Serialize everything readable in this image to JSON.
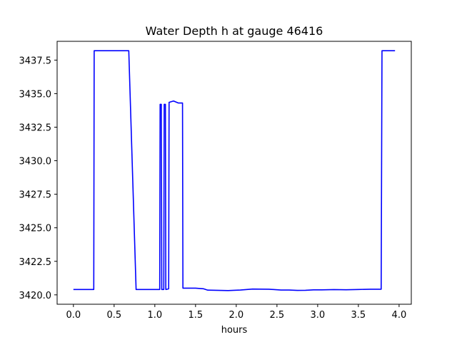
{
  "chart_data": {
    "type": "line",
    "title": "Water Depth h at gauge 46416",
    "xlabel": "hours",
    "ylabel": "",
    "xlim": [
      -0.2,
      4.15
    ],
    "ylim": [
      3419.3,
      3438.9
    ],
    "xticks": [
      0.0,
      0.5,
      1.0,
      1.5,
      2.0,
      2.5,
      3.0,
      3.5,
      4.0
    ],
    "xtick_labels": [
      "0.0",
      "0.5",
      "1.0",
      "1.5",
      "2.0",
      "2.5",
      "3.0",
      "3.5",
      "4.0"
    ],
    "yticks": [
      3420.0,
      3422.5,
      3425.0,
      3427.5,
      3430.0,
      3432.5,
      3435.0,
      3437.5
    ],
    "ytick_labels": [
      "3420.0",
      "3422.5",
      "3425.0",
      "3427.5",
      "3430.0",
      "3432.5",
      "3435.0",
      "3437.5"
    ],
    "grid": false,
    "series": [
      {
        "color": "#0000ff",
        "points": [
          [
            0.0,
            3420.4
          ],
          [
            0.25,
            3420.4
          ],
          [
            0.255,
            3438.2
          ],
          [
            0.5,
            3438.2
          ],
          [
            0.68,
            3438.2
          ],
          [
            0.77,
            3420.4
          ],
          [
            1.06,
            3420.4
          ],
          [
            1.065,
            3434.2
          ],
          [
            1.08,
            3434.2
          ],
          [
            1.085,
            3420.4
          ],
          [
            1.11,
            3420.4
          ],
          [
            1.115,
            3434.2
          ],
          [
            1.13,
            3434.2
          ],
          [
            1.135,
            3420.4
          ],
          [
            1.17,
            3420.45
          ],
          [
            1.175,
            3434.35
          ],
          [
            1.23,
            3434.45
          ],
          [
            1.29,
            3434.3
          ],
          [
            1.34,
            3434.3
          ],
          [
            1.345,
            3420.5
          ],
          [
            1.5,
            3420.5
          ],
          [
            1.6,
            3420.45
          ],
          [
            1.65,
            3420.35
          ],
          [
            1.9,
            3420.32
          ],
          [
            2.05,
            3420.36
          ],
          [
            2.2,
            3420.43
          ],
          [
            2.4,
            3420.42
          ],
          [
            2.55,
            3420.36
          ],
          [
            2.65,
            3420.36
          ],
          [
            2.75,
            3420.33
          ],
          [
            2.85,
            3420.34
          ],
          [
            2.95,
            3420.37
          ],
          [
            3.05,
            3420.37
          ],
          [
            3.2,
            3420.39
          ],
          [
            3.35,
            3420.38
          ],
          [
            3.5,
            3420.4
          ],
          [
            3.65,
            3420.42
          ],
          [
            3.78,
            3420.42
          ],
          [
            3.79,
            3438.2
          ],
          [
            3.95,
            3438.2
          ]
        ]
      }
    ]
  }
}
